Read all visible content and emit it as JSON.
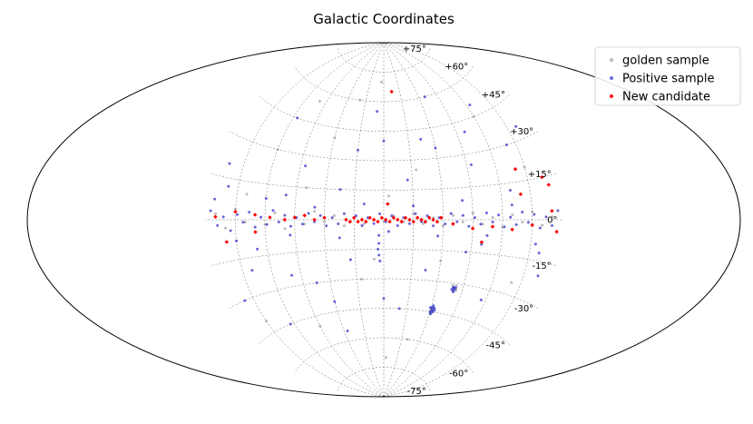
{
  "chart_data": {
    "type": "scatter",
    "projection": "aitoff",
    "title": "Galactic Coordinates",
    "xlabel": "",
    "ylabel": "",
    "grid": true,
    "legend": "top-right",
    "lat_ticks": [
      {
        "value": 75,
        "label": "+75°"
      },
      {
        "value": 60,
        "label": "+60°"
      },
      {
        "value": 45,
        "label": "+45°"
      },
      {
        "value": 30,
        "label": "+30°"
      },
      {
        "value": 15,
        "label": "+15°"
      },
      {
        "value": 0,
        "label": "0°"
      },
      {
        "value": -15,
        "label": "-15°"
      },
      {
        "value": -30,
        "label": "-30°"
      },
      {
        "value": -45,
        "label": "-45°"
      },
      {
        "value": -60,
        "label": "-60°"
      },
      {
        "value": -75,
        "label": "-75°"
      }
    ],
    "lon_gridlines_deg": [
      -150,
      -120,
      -90,
      -60,
      -30,
      0,
      30,
      60,
      90,
      120,
      150
    ],
    "series": [
      {
        "name": "golden sample",
        "color": "#8c8c8c",
        "marker": "circle",
        "points": [
          [
            170,
            2
          ],
          [
            160,
            -3
          ],
          [
            150,
            4
          ],
          [
            140,
            -1
          ],
          [
            130,
            2
          ],
          [
            120,
            -2
          ],
          [
            110,
            3
          ],
          [
            100,
            -4
          ],
          [
            90,
            1
          ],
          [
            80,
            -2
          ],
          [
            70,
            4
          ],
          [
            60,
            -1
          ],
          [
            50,
            2
          ],
          [
            40,
            -3
          ],
          [
            30,
            1
          ],
          [
            20,
            -2
          ],
          [
            10,
            0
          ],
          [
            0,
            -1
          ],
          [
            -10,
            2
          ],
          [
            -20,
            -1
          ],
          [
            -30,
            3
          ],
          [
            -40,
            -2
          ],
          [
            -50,
            1
          ],
          [
            -60,
            -3
          ],
          [
            -70,
            2
          ],
          [
            -80,
            -1
          ],
          [
            -90,
            3
          ],
          [
            -100,
            -2
          ],
          [
            -110,
            1
          ],
          [
            -120,
            -3
          ],
          [
            -130,
            2
          ],
          [
            -140,
            -1
          ],
          [
            -150,
            3
          ],
          [
            -160,
            -2
          ],
          [
            -170,
            1
          ],
          [
            -80,
            -32
          ],
          [
            -79,
            -33
          ],
          [
            -82,
            -31
          ],
          [
            -81,
            -34
          ],
          [
            -78,
            -31
          ],
          [
            -83,
            -33
          ],
          [
            -62,
            -44
          ],
          [
            -61,
            -45
          ],
          [
            -63,
            -43
          ],
          [
            -60,
            -44
          ],
          [
            -64,
            -45
          ],
          [
            -62,
            -46
          ],
          [
            10,
            -20
          ],
          [
            -5,
            12
          ],
          [
            25,
            -30
          ],
          [
            -35,
            25
          ],
          [
            60,
            40
          ],
          [
            -60,
            -20
          ],
          [
            90,
            -50
          ],
          [
            120,
            30
          ],
          [
            -120,
            45
          ],
          [
            150,
            -40
          ],
          [
            -150,
            20
          ],
          [
            40,
            60
          ],
          [
            -40,
            -60
          ],
          [
            80,
            15
          ],
          [
            -100,
            -10
          ],
          [
            140,
            10
          ],
          [
            -140,
            -25
          ],
          [
            5,
            70
          ],
          [
            -5,
            -70
          ],
          [
            100,
            55
          ]
        ]
      },
      {
        "name": "Positive sample",
        "color": "#3333cc",
        "marker": "circle",
        "points": [
          [
            175,
            3
          ],
          [
            168,
            -2
          ],
          [
            162,
            1
          ],
          [
            155,
            -4
          ],
          [
            148,
            2
          ],
          [
            142,
            -1
          ],
          [
            136,
            3
          ],
          [
            130,
            -3
          ],
          [
            124,
            1
          ],
          [
            118,
            -2
          ],
          [
            112,
            4
          ],
          [
            106,
            -1
          ],
          [
            100,
            2
          ],
          [
            94,
            -3
          ],
          [
            88,
            1
          ],
          [
            82,
            -2
          ],
          [
            76,
            3
          ],
          [
            70,
            -1
          ],
          [
            64,
            2
          ],
          [
            58,
            -3
          ],
          [
            52,
            1
          ],
          [
            46,
            -2
          ],
          [
            40,
            3
          ],
          [
            34,
            -1
          ],
          [
            28,
            2
          ],
          [
            22,
            -3
          ],
          [
            16,
            1
          ],
          [
            10,
            -2
          ],
          [
            4,
            3
          ],
          [
            -2,
            -1
          ],
          [
            -8,
            2
          ],
          [
            -14,
            -3
          ],
          [
            -20,
            1
          ],
          [
            -26,
            -2
          ],
          [
            -32,
            3
          ],
          [
            -38,
            -1
          ],
          [
            -44,
            2
          ],
          [
            -50,
            -3
          ],
          [
            -56,
            1
          ],
          [
            -62,
            -2
          ],
          [
            -68,
            3
          ],
          [
            -74,
            -1
          ],
          [
            -80,
            2
          ],
          [
            -86,
            -3
          ],
          [
            -92,
            1
          ],
          [
            -98,
            -2
          ],
          [
            -104,
            3
          ],
          [
            -110,
            -1
          ],
          [
            -116,
            2
          ],
          [
            -122,
            -3
          ],
          [
            -128,
            1
          ],
          [
            -134,
            -2
          ],
          [
            -140,
            3
          ],
          [
            -146,
            -1
          ],
          [
            -152,
            2
          ],
          [
            -158,
            -3
          ],
          [
            -164,
            1
          ],
          [
            -170,
            -2
          ],
          [
            -176,
            3
          ],
          [
            172,
            7
          ],
          [
            150,
            -8
          ],
          [
            120,
            9
          ],
          [
            95,
            -7
          ],
          [
            70,
            6
          ],
          [
            45,
            -9
          ],
          [
            20,
            8
          ],
          [
            -5,
            -6
          ],
          [
            -30,
            7
          ],
          [
            -55,
            -8
          ],
          [
            -80,
            9
          ],
          [
            -105,
            -7
          ],
          [
            -130,
            6
          ],
          [
            -155,
            -9
          ],
          [
            160,
            12
          ],
          [
            -160,
            -12
          ],
          [
            130,
            -12
          ],
          [
            -130,
            12
          ],
          [
            100,
            11
          ],
          [
            -100,
            -11
          ],
          [
            5,
            -8
          ],
          [
            5,
            -12
          ],
          [
            6,
            -15
          ],
          [
            5,
            -18
          ],
          [
            4,
            -21
          ],
          [
            -80,
            -32
          ],
          [
            -81,
            -33
          ],
          [
            -79,
            -32
          ],
          [
            -80,
            -34
          ],
          [
            -82,
            -32
          ],
          [
            -78,
            -33
          ],
          [
            -61,
            -43
          ],
          [
            -62,
            -44
          ],
          [
            -63,
            -45
          ],
          [
            -60,
            -45
          ],
          [
            -64,
            -43
          ],
          [
            -62,
            -42
          ],
          [
            -61,
            -46
          ],
          [
            -65,
            -44
          ],
          [
            -59,
            -43
          ],
          [
            30,
            35
          ],
          [
            -45,
            40
          ],
          [
            75,
            -30
          ],
          [
            -95,
            25
          ],
          [
            140,
            -20
          ],
          [
            -140,
            30
          ],
          [
            10,
            55
          ],
          [
            -20,
            -45
          ],
          [
            55,
            -55
          ],
          [
            -70,
            60
          ],
          [
            115,
            45
          ],
          [
            -115,
            -35
          ],
          [
            160,
            -30
          ],
          [
            -160,
            35
          ],
          [
            35,
            -20
          ],
          [
            -25,
            20
          ],
          [
            85,
            25
          ],
          [
            -85,
            -15
          ],
          [
            125,
            -45
          ],
          [
            -125,
            50
          ],
          [
            0,
            40
          ],
          [
            0,
            -40
          ],
          [
            45,
            15
          ],
          [
            -45,
            -25
          ],
          [
            165,
            20
          ],
          [
            -165,
            -20
          ],
          [
            60,
            -40
          ],
          [
            -60,
            35
          ],
          [
            100,
            -25
          ],
          [
            -100,
            40
          ]
        ]
      },
      {
        "name": "New candidate",
        "color": "#ff0000",
        "marker": "diamond",
        "points": [
          [
            38,
            0
          ],
          [
            34,
            -1
          ],
          [
            30,
            1
          ],
          [
            26,
            -1
          ],
          [
            22,
            0
          ],
          [
            18,
            -1
          ],
          [
            14,
            1
          ],
          [
            10,
            0
          ],
          [
            6,
            -1
          ],
          [
            2,
            1
          ],
          [
            -2,
            0
          ],
          [
            -6,
            -1
          ],
          [
            -10,
            1
          ],
          [
            -14,
            0
          ],
          [
            -18,
            -1
          ],
          [
            -22,
            1
          ],
          [
            -26,
            0
          ],
          [
            -30,
            -1
          ],
          [
            -34,
            1
          ],
          [
            -38,
            0
          ],
          [
            -42,
            -1
          ],
          [
            -46,
            1
          ],
          [
            -50,
            0
          ],
          [
            -54,
            -1
          ],
          [
            -58,
            1
          ],
          [
            60,
            1
          ],
          [
            70,
            0
          ],
          [
            80,
            2
          ],
          [
            90,
            1
          ],
          [
            100,
            0
          ],
          [
            115,
            1
          ],
          [
            130,
            2
          ],
          [
            150,
            3
          ],
          [
            170,
            1
          ],
          [
            -70,
            -2
          ],
          [
            -90,
            -4
          ],
          [
            -110,
            -3
          ],
          [
            -130,
            -4
          ],
          [
            -150,
            -2
          ],
          [
            -170,
            3
          ],
          [
            -175,
            -4
          ],
          [
            -4,
            8
          ],
          [
            -15,
            65
          ],
          [
            -100,
            -10
          ],
          [
            -140,
            20
          ],
          [
            -165,
            15
          ],
          [
            -140,
            10
          ],
          [
            -170,
            12
          ],
          [
            130,
            -5
          ],
          [
            160,
            -8
          ]
        ]
      }
    ]
  }
}
